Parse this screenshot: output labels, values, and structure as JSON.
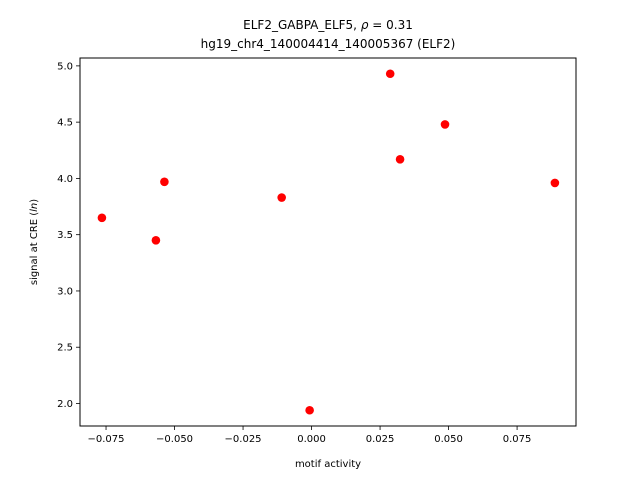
{
  "chart_data": {
    "type": "scatter",
    "title_line1_prefix": "ELF2_GABPA_ELF5, ",
    "title_line1_rho": "ρ",
    "title_line1_suffix": " = 0.31",
    "title_line2": "hg19_chr4_140004414_140005367 (ELF2)",
    "xlabel": "motif activity",
    "ylabel_prefix": "signal at CRE (",
    "ylabel_italic": "ln",
    "ylabel_suffix": ")",
    "xlim": [
      -0.0845,
      0.0965
    ],
    "ylim": [
      1.8,
      5.07
    ],
    "xticks": [
      -0.075,
      -0.05,
      -0.025,
      0.0,
      0.025,
      0.05,
      0.075
    ],
    "xtick_labels": [
      "−0.075",
      "−0.050",
      "−0.025",
      "0.000",
      "0.025",
      "0.050",
      "0.075"
    ],
    "yticks": [
      2.0,
      2.5,
      3.0,
      3.5,
      4.0,
      4.5,
      5.0
    ],
    "ytick_labels": [
      "2.0",
      "2.5",
      "3.0",
      "3.5",
      "4.0",
      "4.5",
      "5.0"
    ],
    "point_color": "#ff0000",
    "points": [
      {
        "x": -0.0765,
        "y": 3.65
      },
      {
        "x": -0.0568,
        "y": 3.45
      },
      {
        "x": -0.0537,
        "y": 3.97
      },
      {
        "x": -0.0109,
        "y": 3.83
      },
      {
        "x": -0.0007,
        "y": 1.94
      },
      {
        "x": 0.0287,
        "y": 4.93
      },
      {
        "x": 0.0323,
        "y": 4.17
      },
      {
        "x": 0.0487,
        "y": 4.48
      },
      {
        "x": 0.0888,
        "y": 3.96
      }
    ]
  }
}
